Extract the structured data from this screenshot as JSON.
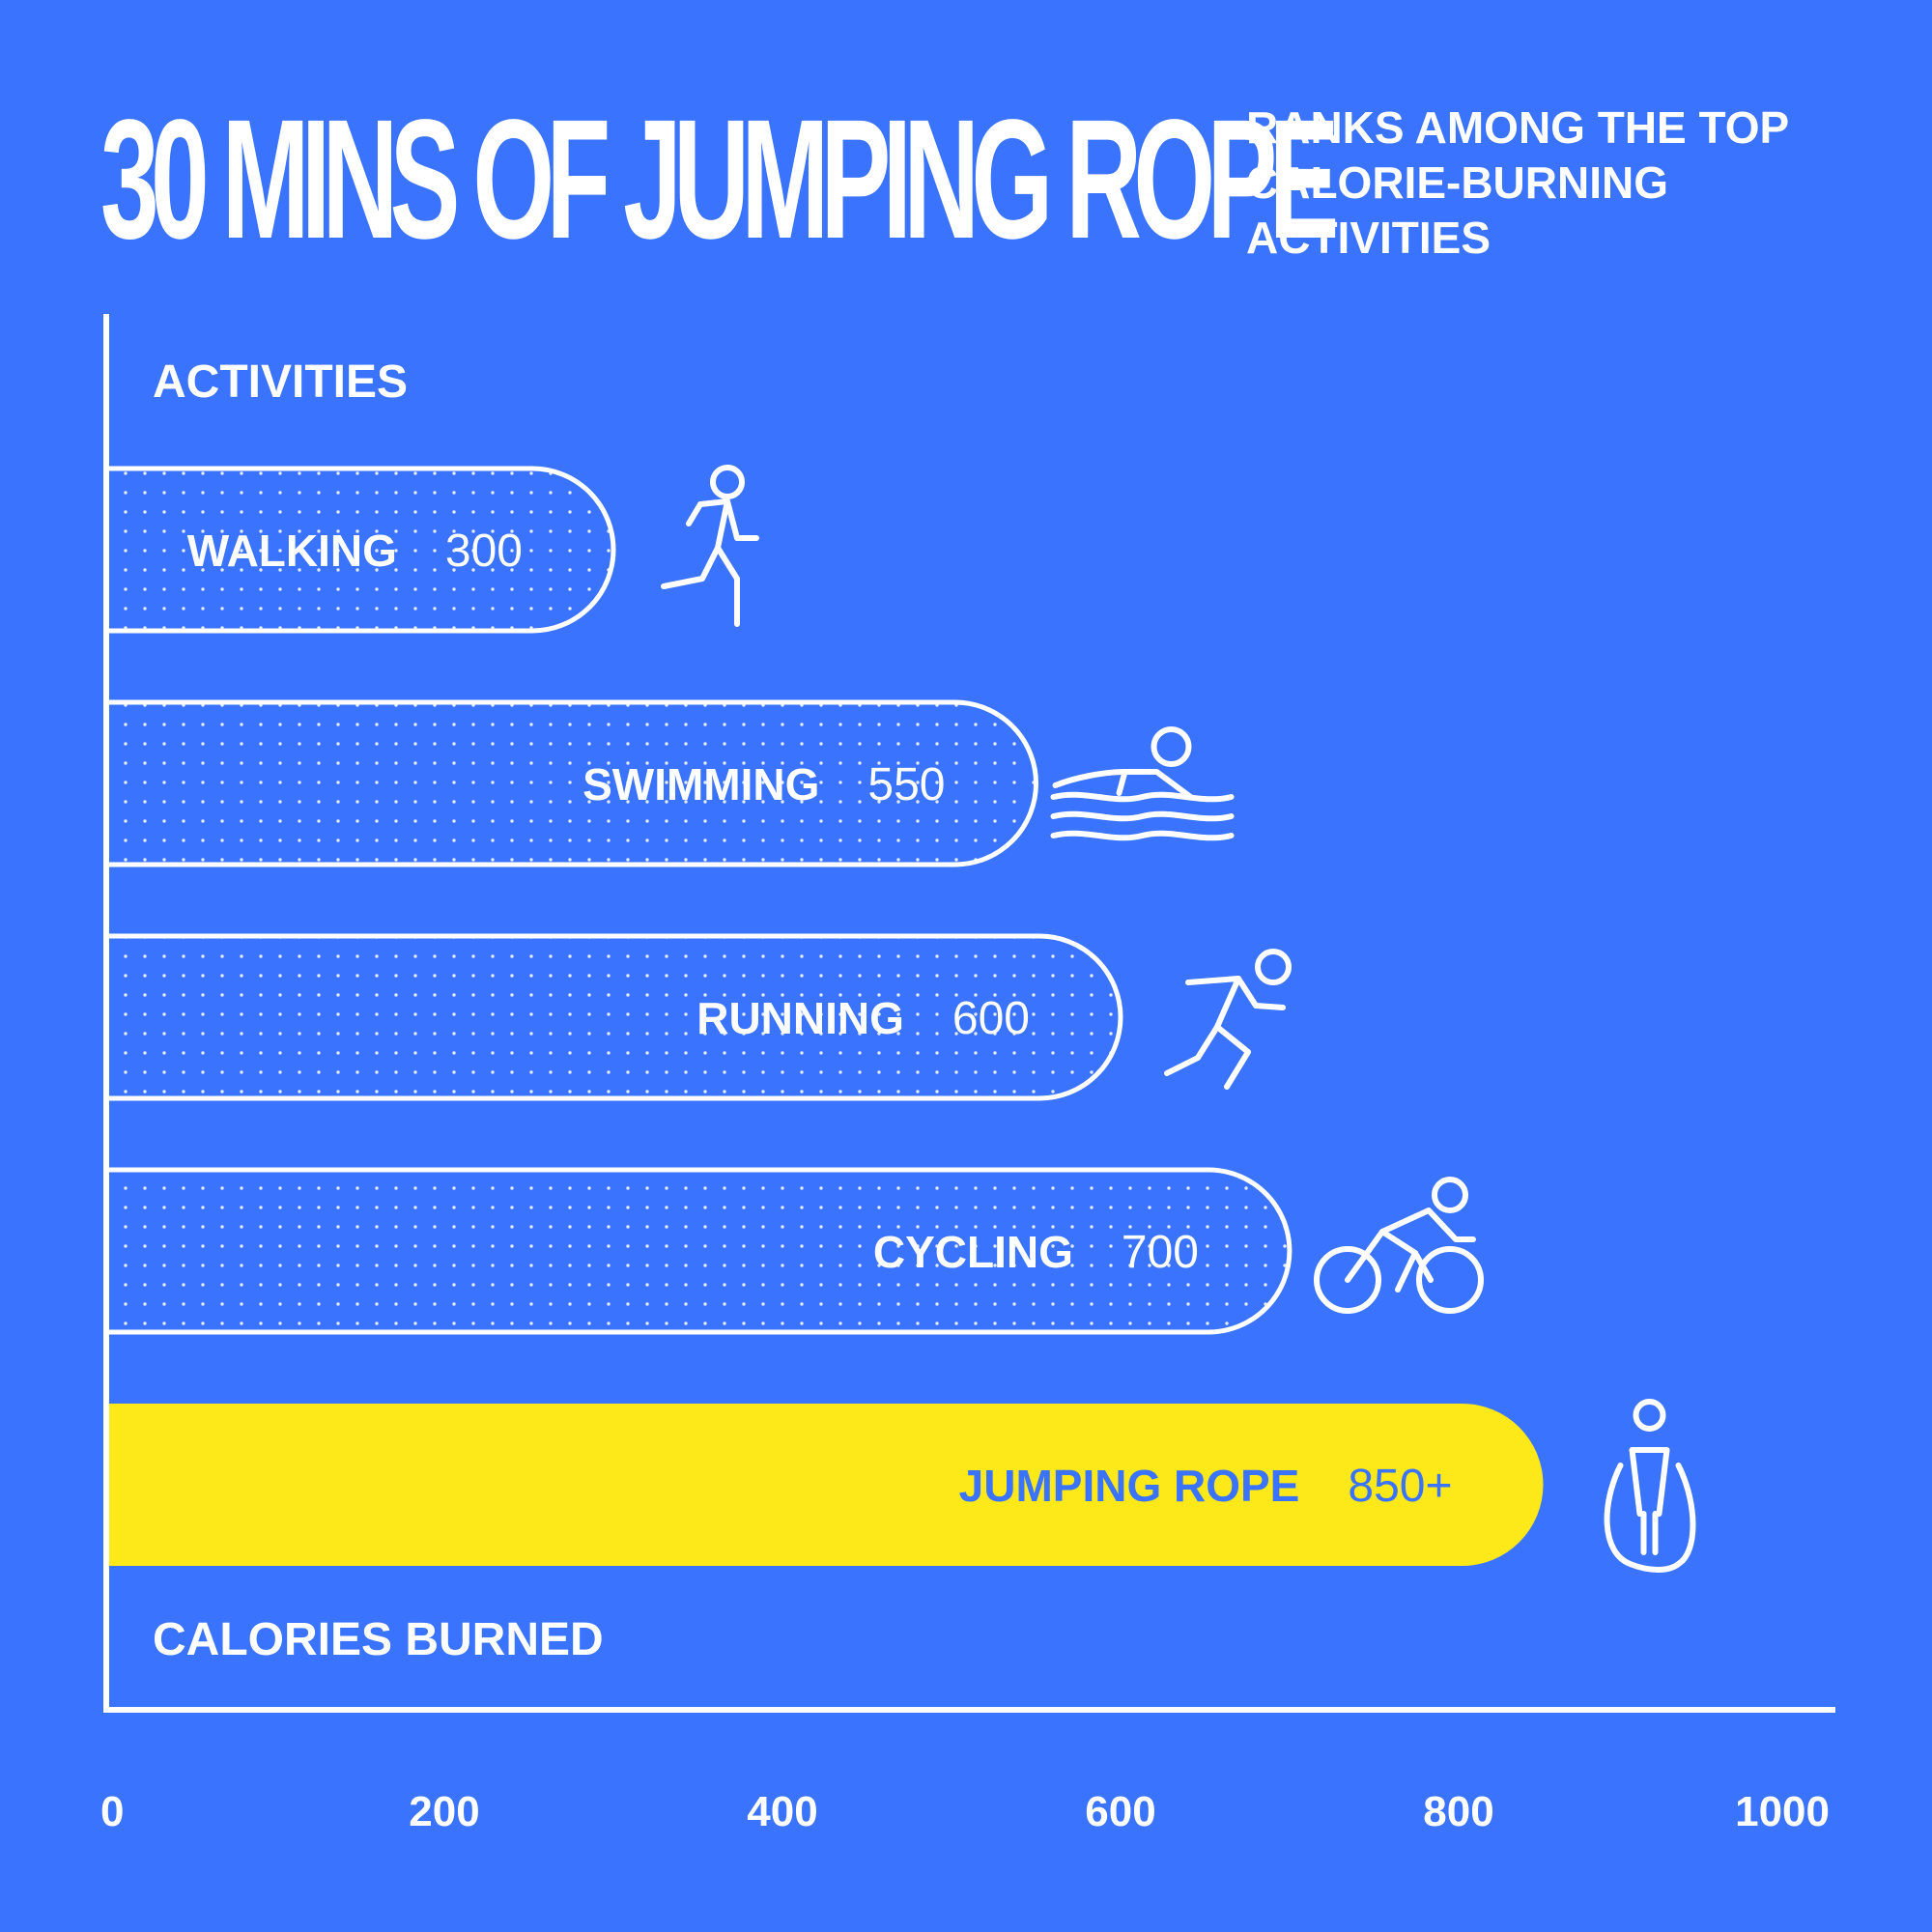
{
  "header": {
    "title": "30 MINS OF JUMPING ROPE",
    "subtitle": "RANKS AMONG THE TOP CALORIE-BURNING ACTIVITIES"
  },
  "colors": {
    "background": "#3a73fd",
    "bar_outline": "#ffffff",
    "highlight_bar": "#fde81a",
    "highlight_text": "#3a73fd"
  },
  "chart_data": {
    "type": "bar",
    "orientation": "horizontal",
    "categories": [
      "WALKING",
      "SWIMMING",
      "RUNNING",
      "CYCLING",
      "JUMPING ROPE"
    ],
    "values": [
      300,
      550,
      600,
      700,
      850
    ],
    "value_labels": [
      "300",
      "550",
      "600",
      "700",
      "850+"
    ],
    "icons": [
      "walking-icon",
      "swimming-icon",
      "running-icon",
      "cycling-icon",
      "jump-rope-icon"
    ],
    "highlight": "JUMPING ROPE",
    "xlabel": "CALORIES BURNED",
    "ylabel": "ACTIVITIES",
    "xlim": [
      0,
      1000
    ],
    "xticks": [
      "0",
      "200",
      "400",
      "600",
      "800",
      "1000"
    ],
    "grid": false,
    "legend": "none"
  }
}
